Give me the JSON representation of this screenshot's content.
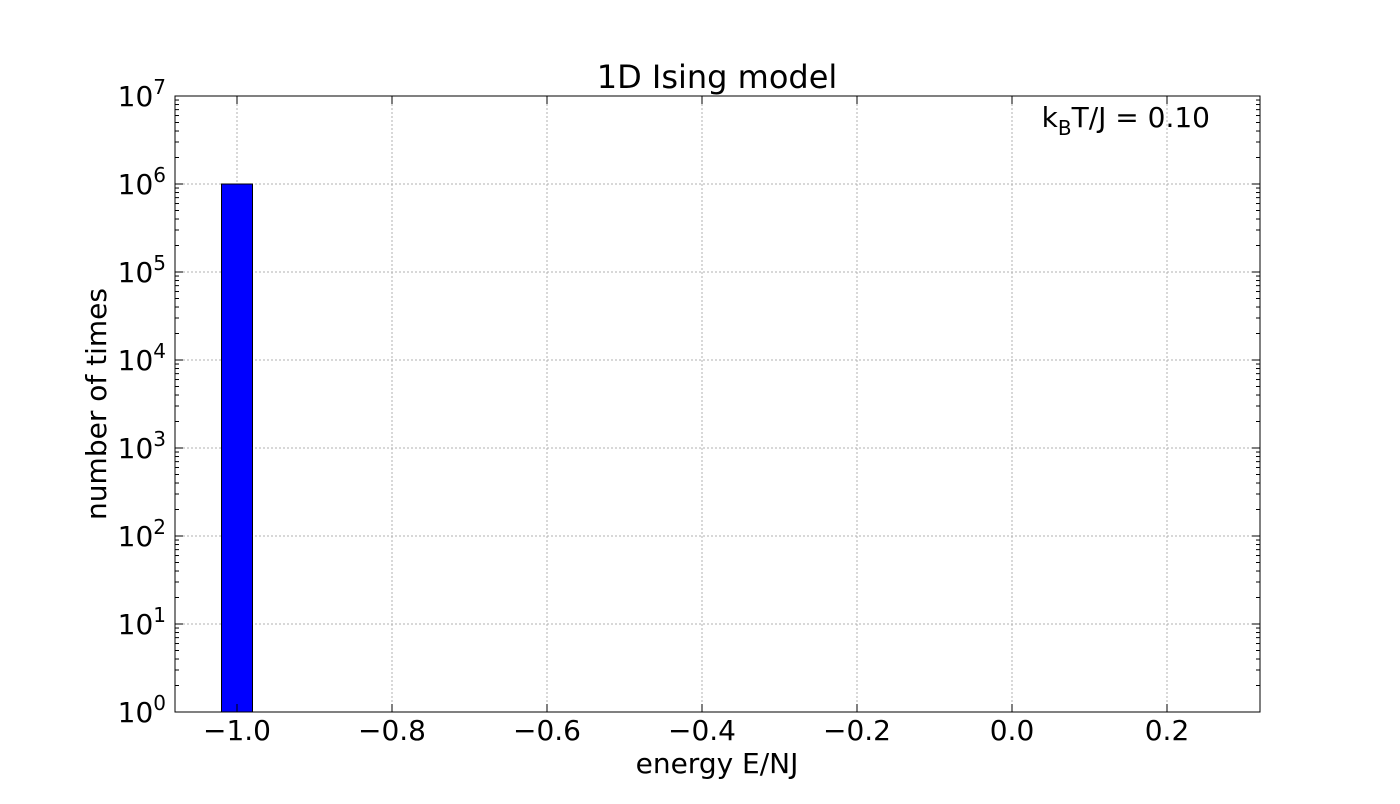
{
  "chart_data": {
    "type": "bar",
    "title": "1D Ising model",
    "xlabel": "energy E/NJ",
    "ylabel": "number of times",
    "annotation": {
      "k": "k",
      "sub": "B",
      "rest": "T/J = 0.10"
    },
    "xlim": [
      -1.08,
      0.32
    ],
    "ylim": [
      1,
      10000000
    ],
    "yscale": "log",
    "grid": true,
    "x_ticks": [
      {
        "value": -1.0,
        "label": "−1.0"
      },
      {
        "value": -0.8,
        "label": "−0.8"
      },
      {
        "value": -0.6,
        "label": "−0.6"
      },
      {
        "value": -0.4,
        "label": "−0.4"
      },
      {
        "value": -0.2,
        "label": "−0.2"
      },
      {
        "value": 0.0,
        "label": "0.0"
      },
      {
        "value": 0.2,
        "label": "0.2"
      }
    ],
    "y_ticks": [
      {
        "value": 1,
        "base": "10",
        "exp": "0"
      },
      {
        "value": 10,
        "base": "10",
        "exp": "1"
      },
      {
        "value": 100,
        "base": "10",
        "exp": "2"
      },
      {
        "value": 1000,
        "base": "10",
        "exp": "3"
      },
      {
        "value": 10000,
        "base": "10",
        "exp": "4"
      },
      {
        "value": 100000,
        "base": "10",
        "exp": "5"
      },
      {
        "value": 1000000,
        "base": "10",
        "exp": "6"
      },
      {
        "value": 10000000,
        "base": "10",
        "exp": "7"
      }
    ],
    "bars": [
      {
        "x0": -1.02,
        "x1": -0.98,
        "count": 1000000
      }
    ],
    "colors": {
      "bar_fill": "#0000ff",
      "bar_edge": "#000000",
      "grid": "#b0b0b0"
    }
  }
}
